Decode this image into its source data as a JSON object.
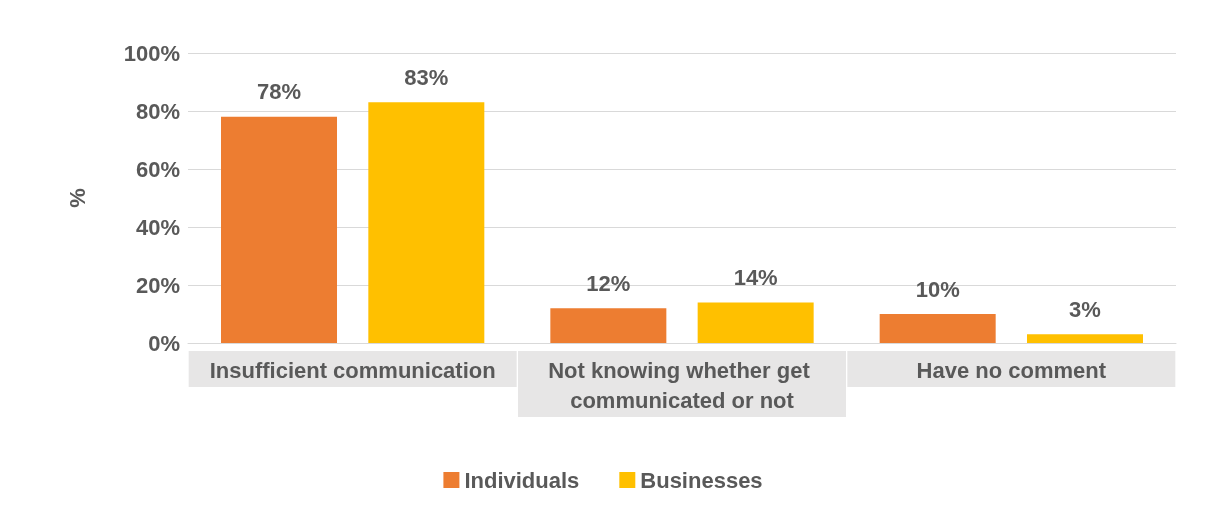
{
  "chart_data": {
    "type": "bar",
    "categories": [
      "Insufficient communication",
      "Not knowing whether get communicated or not",
      "Have no comment"
    ],
    "series": [
      {
        "name": "Individuals",
        "color": "#ed7d31",
        "values": [
          78,
          12,
          10
        ],
        "value_labels": [
          "78%",
          "12%",
          "10%"
        ]
      },
      {
        "name": "Businesses",
        "color": "#ffc000",
        "values": [
          83,
          14,
          3
        ],
        "value_labels": [
          "83%",
          "14%",
          "3%"
        ]
      }
    ],
    "ylabel": "%",
    "ylim": [
      0,
      100
    ],
    "yticks": [
      {
        "value": 0,
        "label": "0%"
      },
      {
        "value": 20,
        "label": "20%"
      },
      {
        "value": 40,
        "label": "40%"
      },
      {
        "value": 60,
        "label": "60%"
      },
      {
        "value": 80,
        "label": "80%"
      },
      {
        "value": 100,
        "label": "100%"
      }
    ],
    "grid": "y",
    "legend": "bottom"
  }
}
